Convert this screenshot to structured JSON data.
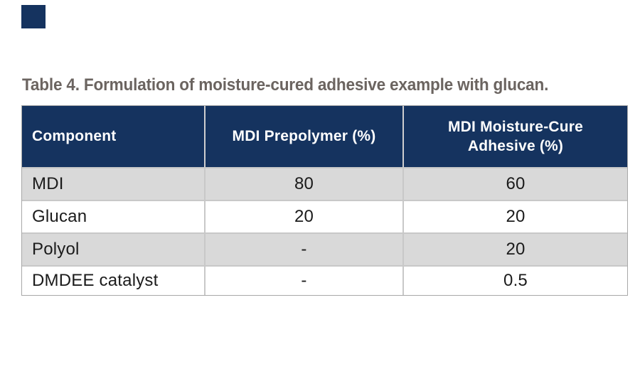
{
  "title": {
    "text": "Table 4. Formulation of moisture-cured adhesive example with glucan."
  },
  "decor": {
    "corner_block_color": "#15335f"
  },
  "table": {
    "header": [
      "Component",
      "MDI Prepolymer (%)",
      "MDI Moisture-Cure Adhesive (%)"
    ],
    "rows": [
      {
        "component": "MDI",
        "prepolymer": "80",
        "adhesive": "60"
      },
      {
        "component": "Glucan",
        "prepolymer": "20",
        "adhesive": "20"
      },
      {
        "component": "Polyol",
        "prepolymer": "-",
        "adhesive": "20"
      },
      {
        "component": "DMDEE catalyst",
        "prepolymer": "-",
        "adhesive": "0.5"
      }
    ],
    "colors": {
      "header_bg": "#15335f",
      "header_text": "#ffffff",
      "row_alt_bg": "#d9d9d9",
      "row_bg": "#ffffff",
      "body_text": "#1b1b1b",
      "border": "#c8c8c8",
      "title_text": "#6b6460"
    }
  }
}
